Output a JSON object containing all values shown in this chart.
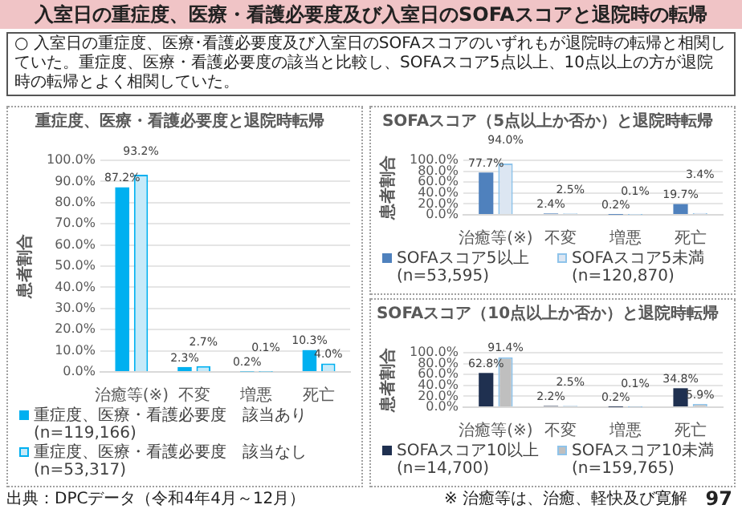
{
  "chart_data": [
    {
      "type": "other",
      "title": "入室日の重症度、医療・看護必要度及び入室日のSOFAスコアと退院時の転帰",
      "annotations": [
        "○ 入室日の重症度、医療･看護必要度及び入室日のSOFAスコアのいずれもが退院時の転帰と相関していた。重症度、医療・看護必要度の該当と比較し、SOFAスコア5点以上、10点以上の方が退院時の転帰とよく相関していた。",
        "出典：DPCデータ（令和4年4月～12月）",
        "※ 治癒等は、治癒、軽快及び寛解",
        "97"
      ]
    },
    {
      "type": "bar",
      "title": "重症度、医療・看護必要度と退院時転帰",
      "ylabel": "患者割合",
      "categories": [
        "治癒等(※)",
        "不変",
        "増悪",
        "死亡"
      ],
      "series": [
        {
          "name": "重症度、医療・看護必要度　該当あり (n=119,166)",
          "color": "#00b0f0",
          "values": [
            87.2,
            2.3,
            0.2,
            10.3
          ],
          "value_labels": [
            "87.2%",
            "2.3%",
            "0.2%",
            "10.3%"
          ]
        },
        {
          "name": "重症度、医療・看護必要度　該当なし (n=53,317)",
          "color": "#c6eaf9",
          "values": [
            93.2,
            2.7,
            0.1,
            4.0
          ],
          "value_labels": [
            "93.2%",
            "2.7%",
            "0.1%",
            "4.0%"
          ]
        }
      ],
      "ylim": [
        0,
        100
      ],
      "yticks": [
        {
          "value": 0,
          "label": "0.0%"
        },
        {
          "value": 10,
          "label": "10.0%"
        },
        {
          "value": 20,
          "label": "20.0%"
        },
        {
          "value": 30,
          "label": "30.0%"
        },
        {
          "value": 40,
          "label": "40.0%"
        },
        {
          "value": 50,
          "label": "50.0%"
        },
        {
          "value": 60,
          "label": "60.0%"
        },
        {
          "value": 70,
          "label": "70.0%"
        },
        {
          "value": 80,
          "label": "80.0%"
        },
        {
          "value": 90,
          "label": "90.0%"
        },
        {
          "value": 100,
          "label": "100.0%"
        }
      ],
      "grid": "y",
      "legend": "bottom"
    },
    {
      "type": "bar",
      "title": "SOFAスコア（5点以上か否か）と退院時転帰",
      "ylabel": "患者割合",
      "categories": [
        "治癒等(※)",
        "不変",
        "増悪",
        "死亡"
      ],
      "series": [
        {
          "name": "SOFAスコア5以上 (n=53,595)",
          "color": "#4f81bd",
          "values": [
            77.7,
            2.4,
            0.2,
            19.7
          ],
          "value_labels": [
            "77.7%",
            "2.4%",
            "0.2%",
            "19.7%"
          ]
        },
        {
          "name": "SOFAスコア5未満 (n=120,870)",
          "color": "#dce6f2",
          "values": [
            94.0,
            2.5,
            0.1,
            3.4
          ],
          "value_labels": [
            "94.0%",
            "2.5%",
            "0.1%",
            "3.4%"
          ]
        }
      ],
      "ylim": [
        0,
        100
      ],
      "yticks": [
        {
          "value": 0,
          "label": "0.0%"
        },
        {
          "value": 20,
          "label": "20.0%"
        },
        {
          "value": 40,
          "label": "40.0%"
        },
        {
          "value": 60,
          "label": "60.0%"
        },
        {
          "value": 80,
          "label": "80.0%"
        },
        {
          "value": 100,
          "label": "100.0%"
        }
      ],
      "grid": "y",
      "legend": "bottom"
    },
    {
      "type": "bar",
      "title": "SOFAスコア（10点以上か否か）と退院時転帰",
      "ylabel": "患者割合",
      "categories": [
        "治癒等(※)",
        "不変",
        "増悪",
        "死亡"
      ],
      "series": [
        {
          "name": "SOFAスコア10以上 (n=14,700)",
          "color": "#1f3050",
          "values": [
            62.8,
            2.2,
            0.2,
            34.8
          ],
          "value_labels": [
            "62.8%",
            "2.2%",
            "0.2%",
            "34.8%"
          ]
        },
        {
          "name": "SOFAスコア10未満 (n=159,765)",
          "color": "#bfbfbf",
          "values": [
            91.4,
            2.5,
            0.1,
            5.9
          ],
          "value_labels": [
            "91.4%",
            "2.5%",
            "0.1%",
            "5.9%"
          ]
        }
      ],
      "ylim": [
        0,
        100
      ],
      "yticks": [
        {
          "value": 0,
          "label": "0.0%"
        },
        {
          "value": 20,
          "label": "20.0%"
        },
        {
          "value": 40,
          "label": "40.0%"
        },
        {
          "value": 60,
          "label": "60.0%"
        },
        {
          "value": 80,
          "label": "80.0%"
        },
        {
          "value": 100,
          "label": "100.0%"
        }
      ],
      "grid": "y",
      "legend": "bottom"
    }
  ]
}
